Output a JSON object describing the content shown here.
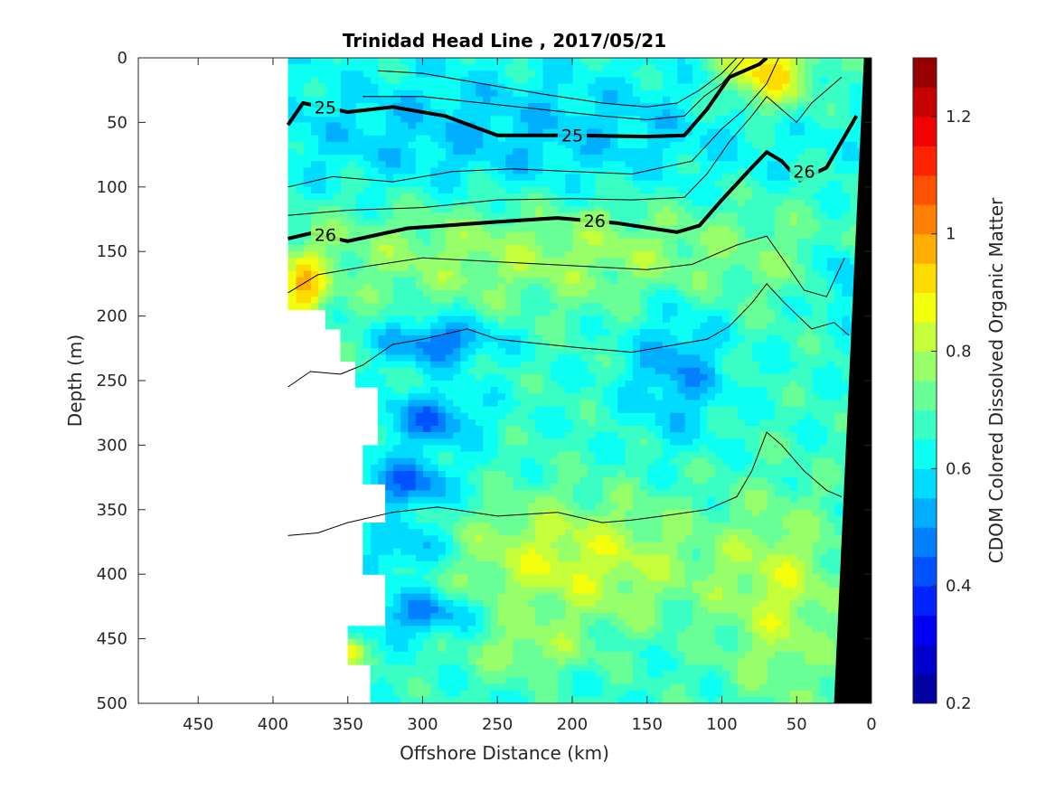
{
  "chart_data": {
    "type": "heatmap",
    "title": "Trinidad Head Line , 2017/05/21",
    "xlabel": "Offshore Distance (km)",
    "ylabel": "Depth (m)",
    "colorbar_label": "CDOM Colored Dissolved Organic Matter",
    "xlim": [
      490,
      0
    ],
    "ylim": [
      500,
      0
    ],
    "clim": [
      0.2,
      1.3
    ],
    "x_ticks": [
      450,
      400,
      350,
      300,
      250,
      200,
      150,
      100,
      50,
      0
    ],
    "y_ticks": [
      0,
      50,
      100,
      150,
      200,
      250,
      300,
      350,
      400,
      450,
      500
    ],
    "colorbar_ticks": [
      0.2,
      0.4,
      0.6,
      0.8,
      1,
      1.2
    ],
    "colormap": [
      "#00008f",
      "#0000ff",
      "#0080ff",
      "#00ffff",
      "#80ff80",
      "#ffff00",
      "#ff8000",
      "#ff0000",
      "#800000"
    ],
    "bottom_fill_color": "#000000",
    "contour_lines": [
      {
        "label": "25",
        "bold": true,
        "points": [
          [
            390,
            52
          ],
          [
            380,
            35
          ],
          [
            350,
            42
          ],
          [
            320,
            38
          ],
          [
            285,
            45
          ],
          [
            250,
            60
          ],
          [
            200,
            60
          ],
          [
            150,
            61
          ],
          [
            125,
            60
          ],
          [
            110,
            40
          ],
          [
            95,
            15
          ],
          [
            75,
            5
          ],
          [
            70,
            0
          ]
        ]
      },
      {
        "label": "26",
        "bold": true,
        "points": [
          [
            390,
            140
          ],
          [
            375,
            136
          ],
          [
            350,
            142
          ],
          [
            310,
            132
          ],
          [
            250,
            127
          ],
          [
            210,
            124
          ],
          [
            170,
            128
          ],
          [
            130,
            135
          ],
          [
            115,
            130
          ],
          [
            100,
            110
          ],
          [
            80,
            85
          ],
          [
            70,
            73
          ],
          [
            60,
            80
          ],
          [
            48,
            95
          ],
          [
            30,
            85
          ],
          [
            10,
            45
          ]
        ]
      },
      {
        "label": "",
        "bold": false,
        "points": [
          [
            390,
            100
          ],
          [
            360,
            92
          ],
          [
            320,
            96
          ],
          [
            280,
            88
          ],
          [
            240,
            86
          ],
          [
            200,
            88
          ],
          [
            160,
            90
          ],
          [
            120,
            80
          ],
          [
            100,
            55
          ],
          [
            85,
            40
          ],
          [
            70,
            20
          ],
          [
            62,
            0
          ]
        ]
      },
      {
        "label": "",
        "bold": false,
        "points": [
          [
            390,
            122
          ],
          [
            350,
            118
          ],
          [
            300,
            116
          ],
          [
            250,
            110
          ],
          [
            200,
            109
          ],
          [
            160,
            110
          ],
          [
            125,
            108
          ],
          [
            110,
            90
          ],
          [
            95,
            65
          ],
          [
            80,
            45
          ],
          [
            70,
            30
          ],
          [
            60,
            40
          ],
          [
            50,
            50
          ],
          [
            40,
            35
          ],
          [
            20,
            15
          ]
        ]
      },
      {
        "label": "",
        "bold": false,
        "points": [
          [
            390,
            182
          ],
          [
            370,
            168
          ],
          [
            340,
            162
          ],
          [
            300,
            155
          ],
          [
            250,
            158
          ],
          [
            200,
            161
          ],
          [
            150,
            164
          ],
          [
            120,
            160
          ],
          [
            90,
            145
          ],
          [
            70,
            138
          ],
          [
            58,
            158
          ],
          [
            45,
            180
          ],
          [
            30,
            185
          ],
          [
            18,
            155
          ]
        ]
      },
      {
        "label": "",
        "bold": false,
        "points": [
          [
            390,
            255
          ],
          [
            375,
            243
          ],
          [
            355,
            245
          ],
          [
            340,
            238
          ],
          [
            320,
            222
          ],
          [
            300,
            218
          ],
          [
            270,
            210
          ],
          [
            250,
            218
          ],
          [
            200,
            224
          ],
          [
            160,
            228
          ],
          [
            130,
            222
          ],
          [
            110,
            218
          ],
          [
            95,
            208
          ],
          [
            80,
            190
          ],
          [
            70,
            175
          ],
          [
            58,
            190
          ],
          [
            40,
            210
          ],
          [
            25,
            205
          ],
          [
            15,
            215
          ]
        ]
      },
      {
        "label": "",
        "bold": false,
        "points": [
          [
            390,
            370
          ],
          [
            370,
            368
          ],
          [
            350,
            360
          ],
          [
            320,
            352
          ],
          [
            290,
            348
          ],
          [
            250,
            355
          ],
          [
            210,
            352
          ],
          [
            180,
            360
          ],
          [
            160,
            358
          ],
          [
            140,
            355
          ],
          [
            110,
            350
          ],
          [
            90,
            340
          ],
          [
            80,
            320
          ],
          [
            70,
            290
          ],
          [
            60,
            300
          ],
          [
            45,
            320
          ],
          [
            30,
            335
          ],
          [
            20,
            340
          ]
        ]
      },
      {
        "label": "",
        "bold": false,
        "points": [
          [
            330,
            10
          ],
          [
            300,
            12
          ],
          [
            260,
            20
          ],
          [
            220,
            28
          ],
          [
            180,
            35
          ],
          [
            150,
            38
          ],
          [
            130,
            35
          ],
          [
            115,
            25
          ],
          [
            100,
            12
          ],
          [
            90,
            0
          ]
        ]
      },
      {
        "label": "",
        "bold": false,
        "points": [
          [
            340,
            30
          ],
          [
            300,
            30
          ],
          [
            260,
            35
          ],
          [
            220,
            40
          ],
          [
            180,
            45
          ],
          [
            150,
            48
          ],
          [
            125,
            45
          ],
          [
            112,
            30
          ],
          [
            100,
            20
          ],
          [
            85,
            0
          ]
        ]
      }
    ]
  }
}
